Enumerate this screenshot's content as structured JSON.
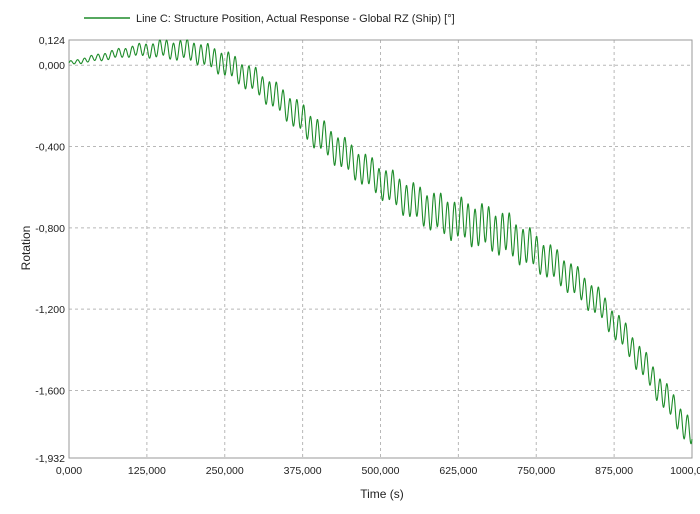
{
  "chart_data": {
    "type": "line",
    "title": "",
    "xlabel": "Time (s)",
    "ylabel": "Rotation",
    "xlim": [
      0,
      1000
    ],
    "ylim": [
      -1.932,
      0.124
    ],
    "x_ticks": [
      0,
      125,
      250,
      375,
      500,
      625,
      750,
      875,
      1000
    ],
    "x_tick_labels": [
      "0,000",
      "125,000",
      "250,000",
      "375,000",
      "500,000",
      "625,000",
      "750,000",
      "875,000",
      "1000,000"
    ],
    "y_ticks": [
      0.124,
      0.0,
      -0.4,
      -0.8,
      -1.2,
      -1.6,
      -1.932
    ],
    "y_tick_labels": [
      "0,124",
      "0,000",
      "-0,400",
      "-0,800",
      "-1,200",
      "-1,600",
      "-1,932"
    ],
    "grid": true,
    "legend_position": "top-left",
    "series": [
      {
        "name": "Line C: Structure Position, Actual Response - Global RZ (Ship) [°]",
        "color": "#1e8c2a",
        "oscillation_period": 11,
        "trend_x": [
          0,
          50,
          100,
          150,
          200,
          250,
          300,
          350,
          400,
          450,
          500,
          550,
          600,
          650,
          700,
          750,
          800,
          850,
          900,
          950,
          1000
        ],
        "trend_y": [
          0.01,
          0.04,
          0.07,
          0.08,
          0.07,
          0.01,
          -0.08,
          -0.2,
          -0.34,
          -0.46,
          -0.57,
          -0.67,
          -0.74,
          -0.78,
          -0.83,
          -0.92,
          -1.03,
          -1.17,
          -1.37,
          -1.6,
          -1.82
        ],
        "amplitude_y": [
          0.01,
          0.02,
          0.03,
          0.05,
          0.06,
          0.07,
          0.07,
          0.08,
          0.09,
          0.09,
          0.09,
          0.1,
          0.11,
          0.12,
          0.12,
          0.1,
          0.09,
          0.08,
          0.08,
          0.08,
          0.08
        ]
      }
    ]
  }
}
